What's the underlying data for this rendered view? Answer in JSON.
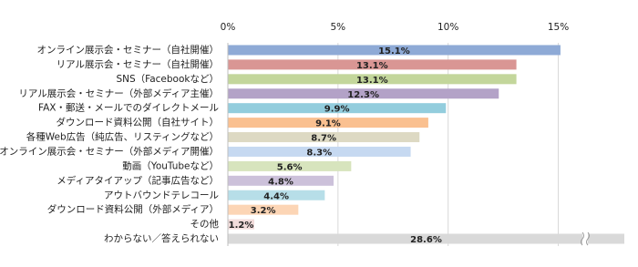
{
  "chart_data": {
    "type": "barh",
    "categories": [
      "オンライン展示会・セミナー（自社開催）",
      "リアル展示会・セミナー（自社開催）",
      "SNS（Facebookなど）",
      "リアル展示会・セミナー（外部メディア主催）",
      "FAX・郵送・メールでのダイレクトメール",
      "ダウンロード資料公開（自社サイト）",
      "各種Web広告（純広告、リスティングなど）",
      "オンライン展示会・セミナー（外部メディア開催）",
      "動画（YouTubeなど）",
      "メディアタイアップ（記事広告など）",
      "アウトバウンドテレコール",
      "ダウンロード資料公開（外部メディア）",
      "その他",
      "わからない／答えられない"
    ],
    "values": [
      15.1,
      13.1,
      13.1,
      12.3,
      9.9,
      9.1,
      8.7,
      8.3,
      5.6,
      4.8,
      4.4,
      3.2,
      1.2,
      28.6
    ],
    "value_labels": [
      "15.1%",
      "13.1%",
      "13.1%",
      "12.3%",
      "9.9%",
      "9.1%",
      "8.7%",
      "8.3%",
      "5.6%",
      "4.8%",
      "4.4%",
      "3.2%",
      "1.2%",
      "28.6%"
    ],
    "colors": [
      "#8eaad6",
      "#d99694",
      "#c3d69b",
      "#b3a2c7",
      "#93cddd",
      "#fac090",
      "#ddd9c3",
      "#c6d9f1",
      "#d7e4bd",
      "#ccc1da",
      "#b7dee8",
      "#fcd5b5",
      "#f2dcdb",
      "#d9d9d9"
    ],
    "xlim": [
      0,
      18
    ],
    "xticks": [
      {
        "value": 0,
        "label": "0%"
      },
      {
        "value": 5,
        "label": "5%"
      },
      {
        "value": 10,
        "label": "10%"
      },
      {
        "value": 15,
        "label": "15%"
      }
    ],
    "grid": true
  }
}
